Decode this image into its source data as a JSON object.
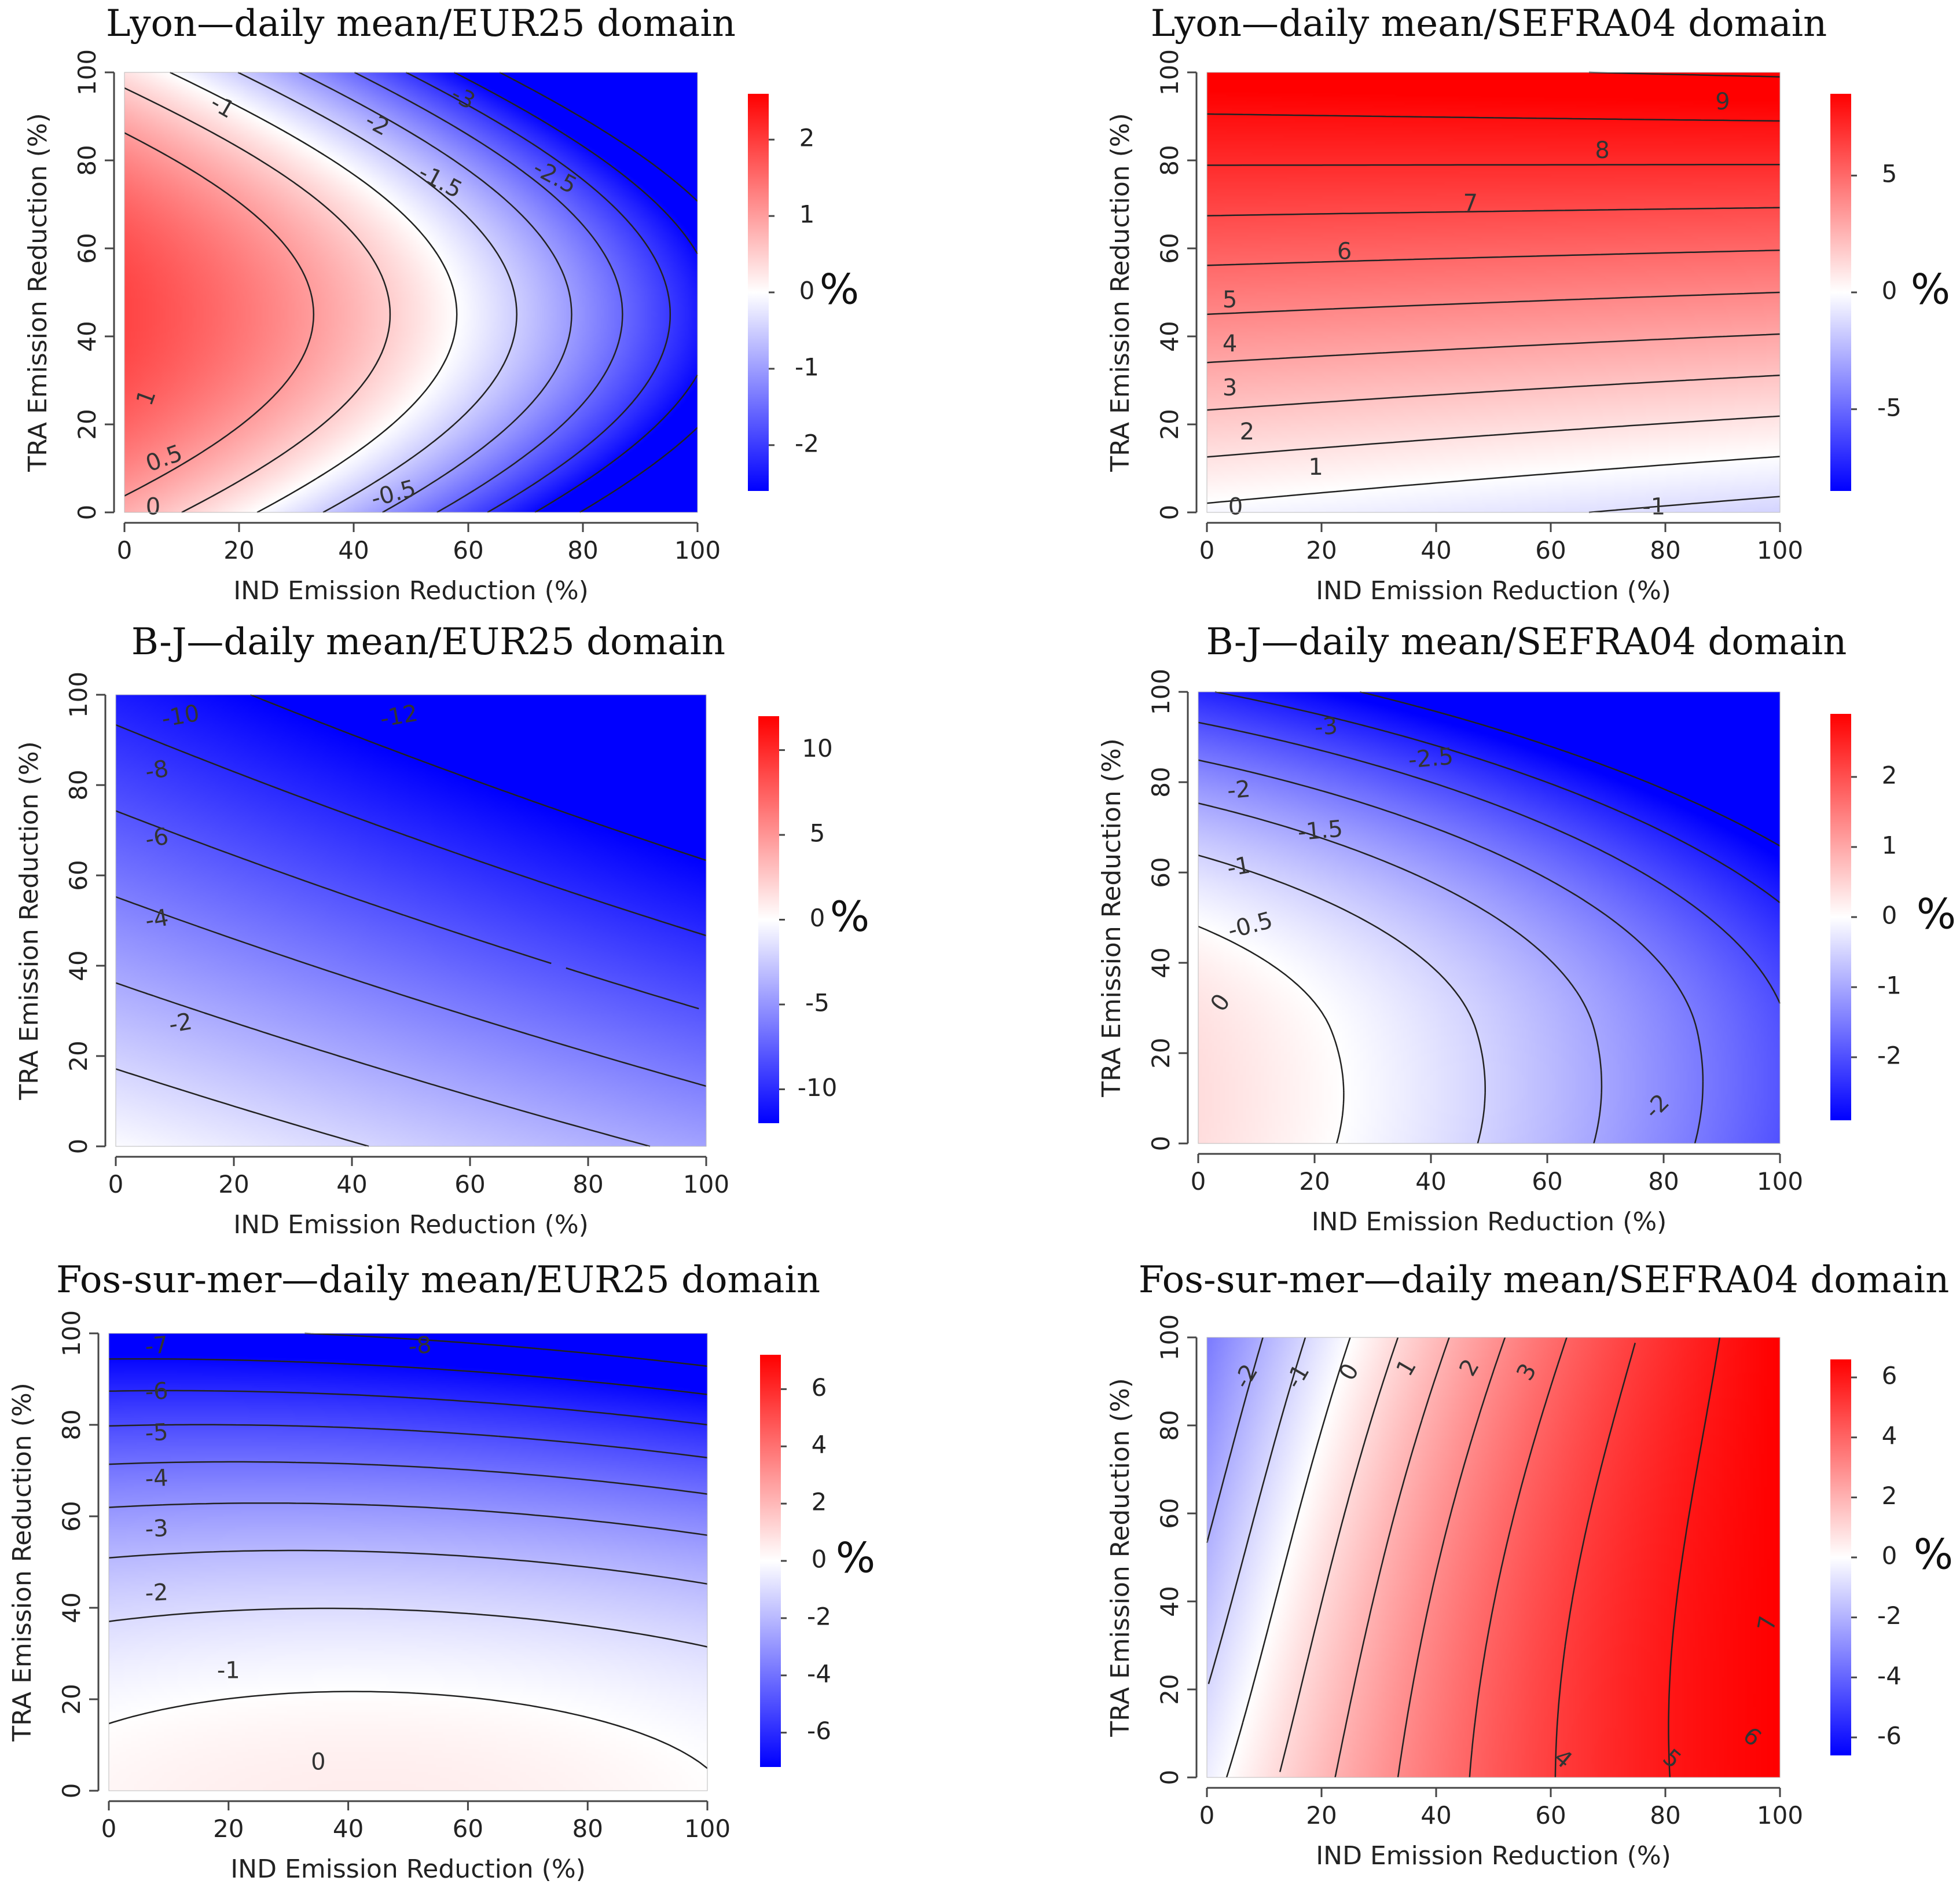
{
  "figure": {
    "percent_unit": "%"
  },
  "chart_data": [
    {
      "id": "p1",
      "type": "heatmap",
      "title": "Lyon—daily mean/EUR25 domain",
      "xlabel": "IND Emission Reduction (%)",
      "ylabel": "TRA Emission Reduction (%)",
      "xlim": [
        0,
        100
      ],
      "ylim": [
        0,
        100
      ],
      "xticks": [
        "0",
        "20",
        "40",
        "60",
        "80",
        "100"
      ],
      "yticks": [
        "0",
        "20",
        "40",
        "60",
        "80",
        "100"
      ],
      "colorbar": {
        "min": -2.6,
        "max": 2.6,
        "ticks": [
          -2,
          -1,
          0,
          1,
          2
        ],
        "tick_labels": [
          "-2",
          "-1",
          "0",
          "1",
          "2"
        ]
      },
      "surface": "val = 1.6*(1-(p/100)^2) - 2.6*x/100 - 0.8*(x/100)^2 + 0.8 - 1.0*((y-45)/55)^2 ... (radial saddle around TRA 45%)",
      "contour_labels": [
        {
          "text": "1",
          "x": 4,
          "y": 26,
          "rot": -70
        },
        {
          "text": "0.5",
          "x": 7,
          "y": 12,
          "rot": -20
        },
        {
          "text": "0",
          "x": 5,
          "y": 1,
          "rot": 0
        },
        {
          "text": "-1",
          "x": 17,
          "y": 92,
          "rot": 30
        },
        {
          "text": "-2",
          "x": 44,
          "y": 88,
          "rot": 28
        },
        {
          "text": "-3",
          "x": 59,
          "y": 94,
          "rot": 28
        },
        {
          "text": "-1.5",
          "x": 55,
          "y": 75,
          "rot": 28
        },
        {
          "text": "-2.5",
          "x": 75,
          "y": 76,
          "rot": 28
        },
        {
          "text": "-0.5",
          "x": 47,
          "y": 4,
          "rot": -15
        }
      ]
    },
    {
      "id": "p2",
      "type": "heatmap",
      "title": "Lyon—daily mean/SEFRA04 domain",
      "xlabel": "IND Emission Reduction (%)",
      "ylabel": "TRA Emission Reduction (%)",
      "xlim": [
        0,
        100
      ],
      "ylim": [
        0,
        100
      ],
      "xticks": [
        "0",
        "20",
        "40",
        "60",
        "80",
        "100"
      ],
      "yticks": [
        "0",
        "20",
        "40",
        "60",
        "80",
        "100"
      ],
      "colorbar": {
        "min": -8.5,
        "max": 8.5,
        "ticks": [
          -5,
          0,
          5
        ],
        "tick_labels": [
          "-5",
          "0",
          "5"
        ]
      },
      "contour_labels": [
        {
          "text": "9",
          "x": 90,
          "y": 93,
          "rot": 0
        },
        {
          "text": "8",
          "x": 69,
          "y": 82,
          "rot": 0
        },
        {
          "text": "7",
          "x": 46,
          "y": 70,
          "rot": 0
        },
        {
          "text": "6",
          "x": 24,
          "y": 59,
          "rot": 0
        },
        {
          "text": "5",
          "x": 4,
          "y": 48,
          "rot": 0
        },
        {
          "text": "4",
          "x": 4,
          "y": 38,
          "rot": 0
        },
        {
          "text": "3",
          "x": 4,
          "y": 28,
          "rot": 0
        },
        {
          "text": "2",
          "x": 7,
          "y": 18,
          "rot": 0
        },
        {
          "text": "1",
          "x": 19,
          "y": 10,
          "rot": 0
        },
        {
          "text": "0",
          "x": 5,
          "y": 1,
          "rot": 0
        },
        {
          "text": "-1",
          "x": 78,
          "y": 1,
          "rot": 0
        }
      ]
    },
    {
      "id": "p3",
      "type": "heatmap",
      "title": "B-J—daily mean/EUR25 domain",
      "xlabel": "IND Emission Reduction (%)",
      "ylabel": "TRA Emission Reduction (%)",
      "xlim": [
        0,
        100
      ],
      "ylim": [
        0,
        100
      ],
      "xticks": [
        "0",
        "20",
        "40",
        "60",
        "80",
        "100"
      ],
      "yticks": [
        "0",
        "20",
        "40",
        "60",
        "80",
        "100"
      ],
      "colorbar": {
        "min": -12,
        "max": 12,
        "ticks": [
          -10,
          -5,
          0,
          5,
          10
        ],
        "tick_labels": [
          "-10",
          "-5",
          "0",
          "5",
          "10"
        ]
      },
      "contour_labels": [
        {
          "text": "-10",
          "x": 11,
          "y": 95,
          "rot": -10
        },
        {
          "text": "-12",
          "x": 48,
          "y": 95,
          "rot": -10
        },
        {
          "text": "-8",
          "x": 7,
          "y": 83,
          "rot": -10
        },
        {
          "text": "-6",
          "x": 7,
          "y": 68,
          "rot": -10
        },
        {
          "text": "-4",
          "x": 7,
          "y": 50,
          "rot": -10
        },
        {
          "text": "-2",
          "x": 11,
          "y": 27,
          "rot": -10
        }
      ]
    },
    {
      "id": "p4",
      "type": "heatmap",
      "title": "B-J—daily mean/SEFRA04 domain",
      "xlabel": "IND Emission Reduction (%)",
      "ylabel": "TRA Emission Reduction (%)",
      "xlim": [
        0,
        100
      ],
      "ylim": [
        0,
        100
      ],
      "xticks": [
        "0",
        "20",
        "40",
        "60",
        "80",
        "100"
      ],
      "yticks": [
        "0",
        "20",
        "40",
        "60",
        "80",
        "100"
      ],
      "colorbar": {
        "min": -2.9,
        "max": 2.9,
        "ticks": [
          -2,
          -1,
          0,
          1,
          2
        ],
        "tick_labels": [
          "-2",
          "-1",
          "0",
          "1",
          "2"
        ]
      },
      "contour_labels": [
        {
          "text": "-3",
          "x": 22,
          "y": 92,
          "rot": -5
        },
        {
          "text": "-2.5",
          "x": 40,
          "y": 85,
          "rot": -5
        },
        {
          "text": "-2",
          "x": 7,
          "y": 78,
          "rot": -5
        },
        {
          "text": "-1.5",
          "x": 21,
          "y": 69,
          "rot": -5
        },
        {
          "text": "-1",
          "x": 7,
          "y": 61,
          "rot": -10
        },
        {
          "text": "-0.5",
          "x": 9,
          "y": 48,
          "rot": -15
        },
        {
          "text": "0",
          "x": 4,
          "y": 31,
          "rot": -55
        },
        {
          "text": "-2",
          "x": 79,
          "y": 8,
          "rot": -45
        }
      ]
    },
    {
      "id": "p5",
      "type": "heatmap",
      "title": "Fos-sur-mer—daily mean/EUR25 domain",
      "xlabel": "IND Emission Reduction (%)",
      "ylabel": "TRA Emission Reduction (%)",
      "xlim": [
        0,
        100
      ],
      "ylim": [
        0,
        100
      ],
      "xticks": [
        "0",
        "20",
        "40",
        "60",
        "80",
        "100"
      ],
      "yticks": [
        "0",
        "20",
        "40",
        "60",
        "80",
        "100"
      ],
      "colorbar": {
        "min": -7.2,
        "max": 7.2,
        "ticks": [
          -6,
          -4,
          -2,
          0,
          2,
          4,
          6
        ],
        "tick_labels": [
          "-6",
          "-4",
          "-2",
          "0",
          "2",
          "4",
          "6"
        ]
      },
      "contour_labels": [
        {
          "text": "-7",
          "x": 8,
          "y": 97,
          "rot": -5
        },
        {
          "text": "-8",
          "x": 52,
          "y": 97,
          "rot": -5
        },
        {
          "text": "-6",
          "x": 8,
          "y": 87,
          "rot": -3
        },
        {
          "text": "-5",
          "x": 8,
          "y": 78,
          "rot": -3
        },
        {
          "text": "-4",
          "x": 8,
          "y": 68,
          "rot": -3
        },
        {
          "text": "-3",
          "x": 8,
          "y": 57,
          "rot": -3
        },
        {
          "text": "-2",
          "x": 8,
          "y": 43,
          "rot": -3
        },
        {
          "text": "-1",
          "x": 20,
          "y": 26,
          "rot": 0
        },
        {
          "text": "0",
          "x": 35,
          "y": 6,
          "rot": 0
        }
      ]
    },
    {
      "id": "p6",
      "type": "heatmap",
      "title": "Fos-sur-mer—daily mean/SEFRA04 domain",
      "xlabel": "IND Emission Reduction (%)",
      "ylabel": "TRA Emission Reduction (%)",
      "xlim": [
        0,
        100
      ],
      "ylim": [
        0,
        100
      ],
      "xticks": [
        "0",
        "20",
        "40",
        "60",
        "80",
        "100"
      ],
      "yticks": [
        "0",
        "20",
        "40",
        "60",
        "80",
        "100"
      ],
      "colorbar": {
        "min": -6.6,
        "max": 6.6,
        "ticks": [
          -6,
          -4,
          -2,
          0,
          2,
          4,
          6
        ],
        "tick_labels": [
          "-6",
          "-4",
          "-2",
          "0",
          "2",
          "4",
          "6"
        ]
      },
      "contour_labels": [
        {
          "text": "-2",
          "x": 7,
          "y": 91,
          "rot": -60
        },
        {
          "text": "-1",
          "x": 16,
          "y": 91,
          "rot": -60
        },
        {
          "text": "0",
          "x": 25,
          "y": 92,
          "rot": -60
        },
        {
          "text": "1",
          "x": 35,
          "y": 93,
          "rot": -60
        },
        {
          "text": "2",
          "x": 46,
          "y": 93,
          "rot": -60
        },
        {
          "text": "3",
          "x": 56,
          "y": 92,
          "rot": -60
        },
        {
          "text": "4",
          "x": 62,
          "y": 4,
          "rot": 40
        },
        {
          "text": "5",
          "x": 81,
          "y": 4,
          "rot": 40
        },
        {
          "text": "6",
          "x": 95,
          "y": 9,
          "rot": 40
        },
        {
          "text": "7",
          "x": 98,
          "y": 35,
          "rot": -80
        }
      ]
    }
  ]
}
